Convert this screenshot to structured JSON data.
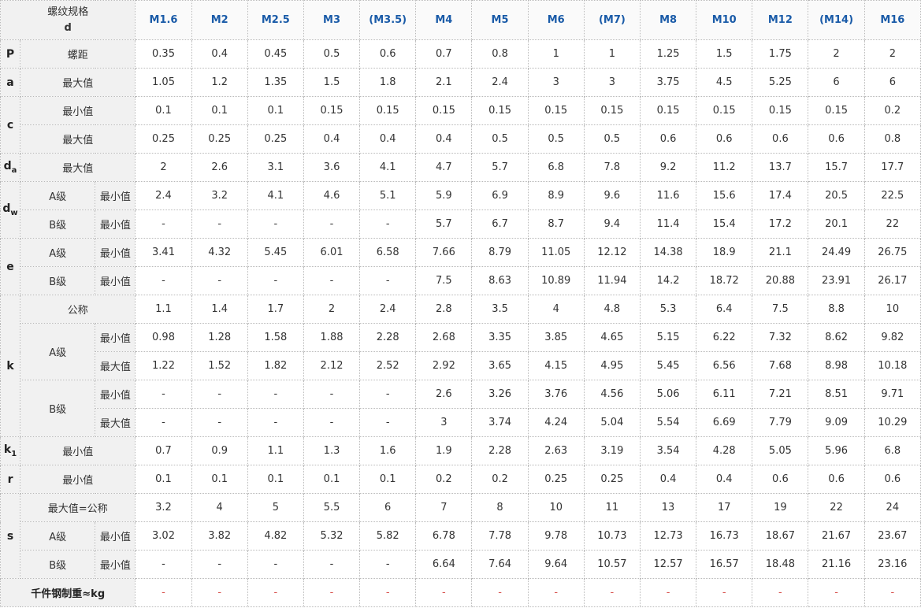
{
  "header": {
    "title_line1": "螺纹规格",
    "title_line2": "d",
    "sizes": [
      "M1.6",
      "M2",
      "M2.5",
      "M3",
      "(M3.5)",
      "M4",
      "M5",
      "M6",
      "(M7)",
      "M8",
      "M10",
      "M12",
      "(M14)",
      "M16"
    ]
  },
  "symbols": {
    "P": "P",
    "a": "a",
    "c": "c",
    "da_main": "d",
    "da_sub": "a",
    "dw_main": "d",
    "dw_sub": "w",
    "e": "e",
    "k": "k",
    "k1_main": "k",
    "k1_sub": "1",
    "r": "r",
    "s": "s"
  },
  "labels": {
    "pitch": "螺距",
    "max": "最大值",
    "min": "最小值",
    "grade_a": "A级",
    "grade_b": "B级",
    "nominal": "公称",
    "max_nominal": "最大值=公称",
    "weight": "千件钢制重≈kg"
  },
  "rows": {
    "P": [
      "0.35",
      "0.4",
      "0.45",
      "0.5",
      "0.6",
      "0.7",
      "0.8",
      "1",
      "1",
      "1.25",
      "1.5",
      "1.75",
      "2",
      "2"
    ],
    "a_max": [
      "1.05",
      "1.2",
      "1.35",
      "1.5",
      "1.8",
      "2.1",
      "2.4",
      "3",
      "3",
      "3.75",
      "4.5",
      "5.25",
      "6",
      "6"
    ],
    "c_min": [
      "0.1",
      "0.1",
      "0.1",
      "0.15",
      "0.15",
      "0.15",
      "0.15",
      "0.15",
      "0.15",
      "0.15",
      "0.15",
      "0.15",
      "0.15",
      "0.2"
    ],
    "c_max": [
      "0.25",
      "0.25",
      "0.25",
      "0.4",
      "0.4",
      "0.4",
      "0.5",
      "0.5",
      "0.5",
      "0.6",
      "0.6",
      "0.6",
      "0.6",
      "0.8"
    ],
    "da_max": [
      "2",
      "2.6",
      "3.1",
      "3.6",
      "4.1",
      "4.7",
      "5.7",
      "6.8",
      "7.8",
      "9.2",
      "11.2",
      "13.7",
      "15.7",
      "17.7"
    ],
    "dw_a_min": [
      "2.4",
      "3.2",
      "4.1",
      "4.6",
      "5.1",
      "5.9",
      "6.9",
      "8.9",
      "9.6",
      "11.6",
      "15.6",
      "17.4",
      "20.5",
      "22.5"
    ],
    "dw_b_min": [
      "-",
      "-",
      "-",
      "-",
      "-",
      "5.7",
      "6.7",
      "8.7",
      "9.4",
      "11.4",
      "15.4",
      "17.2",
      "20.1",
      "22"
    ],
    "e_a_min": [
      "3.41",
      "4.32",
      "5.45",
      "6.01",
      "6.58",
      "7.66",
      "8.79",
      "11.05",
      "12.12",
      "14.38",
      "18.9",
      "21.1",
      "24.49",
      "26.75"
    ],
    "e_b_min": [
      "-",
      "-",
      "-",
      "-",
      "-",
      "7.5",
      "8.63",
      "10.89",
      "11.94",
      "14.2",
      "18.72",
      "20.88",
      "23.91",
      "26.17"
    ],
    "k_nom": [
      "1.1",
      "1.4",
      "1.7",
      "2",
      "2.4",
      "2.8",
      "3.5",
      "4",
      "4.8",
      "5.3",
      "6.4",
      "7.5",
      "8.8",
      "10"
    ],
    "k_a_min": [
      "0.98",
      "1.28",
      "1.58",
      "1.88",
      "2.28",
      "2.68",
      "3.35",
      "3.85",
      "4.65",
      "5.15",
      "6.22",
      "7.32",
      "8.62",
      "9.82"
    ],
    "k_a_max": [
      "1.22",
      "1.52",
      "1.82",
      "2.12",
      "2.52",
      "2.92",
      "3.65",
      "4.15",
      "4.95",
      "5.45",
      "6.56",
      "7.68",
      "8.98",
      "10.18"
    ],
    "k_b_min": [
      "-",
      "-",
      "-",
      "-",
      "-",
      "2.6",
      "3.26",
      "3.76",
      "4.56",
      "5.06",
      "6.11",
      "7.21",
      "8.51",
      "9.71"
    ],
    "k_b_max": [
      "-",
      "-",
      "-",
      "-",
      "-",
      "3",
      "3.74",
      "4.24",
      "5.04",
      "5.54",
      "6.69",
      "7.79",
      "9.09",
      "10.29"
    ],
    "k1_min": [
      "0.7",
      "0.9",
      "1.1",
      "1.3",
      "1.6",
      "1.9",
      "2.28",
      "2.63",
      "3.19",
      "3.54",
      "4.28",
      "5.05",
      "5.96",
      "6.8"
    ],
    "r_min": [
      "0.1",
      "0.1",
      "0.1",
      "0.1",
      "0.1",
      "0.2",
      "0.2",
      "0.25",
      "0.25",
      "0.4",
      "0.4",
      "0.6",
      "0.6",
      "0.6"
    ],
    "s_nom": [
      "3.2",
      "4",
      "5",
      "5.5",
      "6",
      "7",
      "8",
      "10",
      "11",
      "13",
      "17",
      "19",
      "22",
      "24"
    ],
    "s_a_min": [
      "3.02",
      "3.82",
      "4.82",
      "5.32",
      "5.82",
      "6.78",
      "7.78",
      "9.78",
      "10.73",
      "12.73",
      "16.73",
      "18.67",
      "21.67",
      "23.67"
    ],
    "s_b_min": [
      "-",
      "-",
      "-",
      "-",
      "-",
      "6.64",
      "7.64",
      "9.64",
      "10.57",
      "12.57",
      "16.57",
      "18.48",
      "21.16",
      "23.16"
    ],
    "weight": [
      "-",
      "-",
      "-",
      "-",
      "-",
      "-",
      "-",
      "-",
      "-",
      "-",
      "-",
      "-",
      "-",
      "-"
    ]
  },
  "colors": {
    "size_header": "#1a5ba8",
    "label_bg": "#f1f1f1",
    "weight_value": "#d9534f"
  }
}
